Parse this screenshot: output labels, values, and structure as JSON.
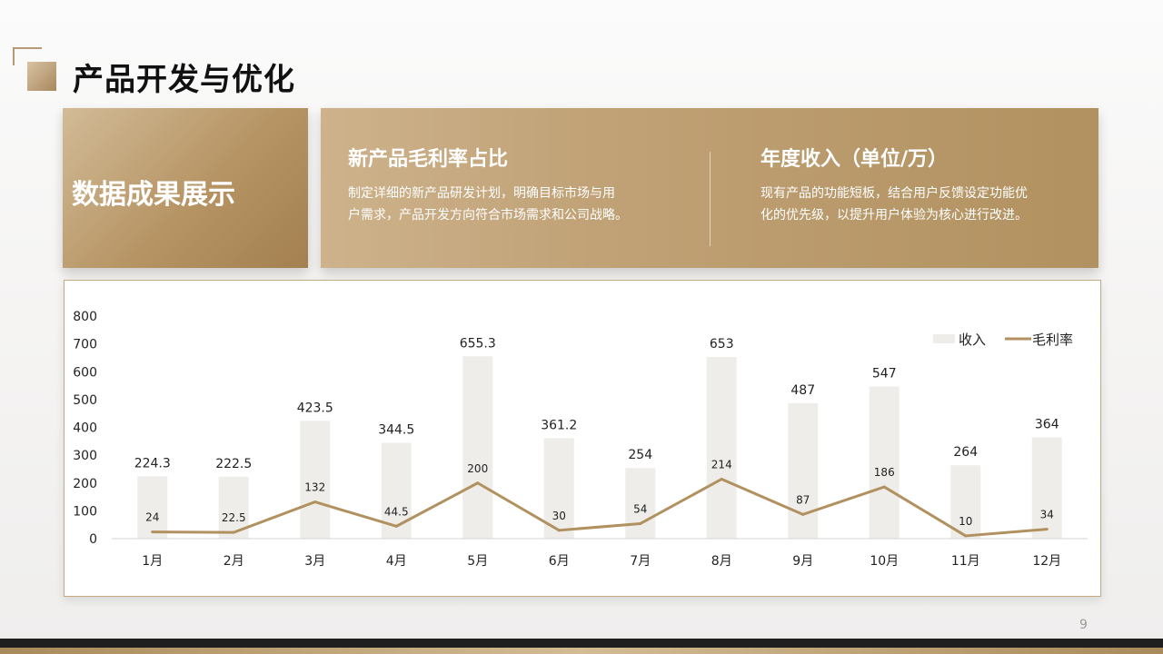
{
  "header": {
    "title": "产品开发与优化"
  },
  "left_card": {
    "title": "数据成果展示"
  },
  "right_card": {
    "block1": {
      "heading": "新产品毛利率占比",
      "text_line1": "制定详细的新产品研发计划，明确目标市场与用",
      "text_line2": "户需求，产品开发方向符合市场需求和公司战略。"
    },
    "block2": {
      "heading": "年度收入（单位/万）",
      "text_line1": "现有产品的功能短板，结合用户反馈设定功能优",
      "text_line2": "化的优先级，以提升用户体验为核心进行改进。"
    }
  },
  "footer": {
    "page_number": "9"
  },
  "colors": {
    "bar": "#efedea",
    "line": "#b1915f",
    "accent": "#b69464"
  },
  "chart_data": {
    "type": "bar",
    "categories": [
      "1月",
      "2月",
      "3月",
      "4月",
      "5月",
      "6月",
      "7月",
      "8月",
      "9月",
      "10月",
      "11月",
      "12月"
    ],
    "series": [
      {
        "name": "收入",
        "type": "bar",
        "values": [
          224.3,
          222.5,
          423.5,
          344.5,
          655.3,
          361.2,
          254,
          653,
          487,
          547,
          264,
          364
        ]
      },
      {
        "name": "毛利率",
        "type": "line",
        "values": [
          24,
          22.5,
          132,
          44.5,
          200,
          30,
          54,
          214,
          87,
          186,
          10,
          34
        ]
      }
    ],
    "y_ticks": [
      "0",
      "100",
      "200",
      "300",
      "400",
      "500",
      "600",
      "700",
      "800"
    ],
    "ylim": [
      0,
      800
    ],
    "grid": false,
    "legend_position": "top-right",
    "data_labels": true
  }
}
